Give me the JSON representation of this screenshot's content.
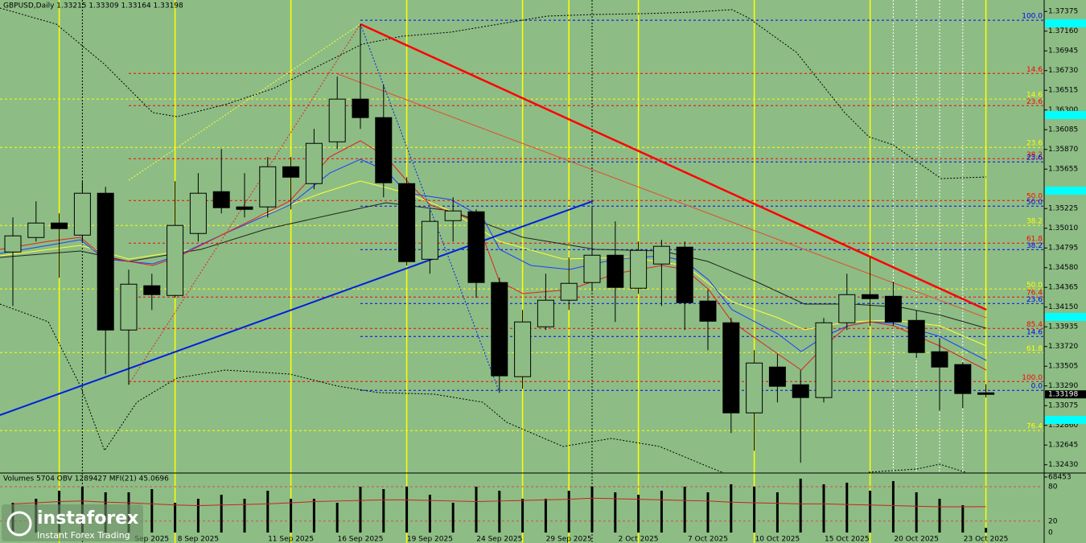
{
  "chart_data": [
    {
      "type": "candlestick",
      "title": "GBPUSD,Daily  1.33215 1.33309 1.33164 1.33198",
      "categories": [
        null,
        null,
        null,
        null,
        null,
        null,
        "Sep 2025",
        null,
        "8 Sep 2025",
        null,
        null,
        null,
        "11 Sep 2025",
        null,
        null,
        "16 Sep 2025",
        null,
        null,
        "19 Sep 2025",
        null,
        null,
        "24 Sep 2025",
        null,
        null,
        "29 Sep 2025",
        null,
        null,
        "2 Oct 2025",
        null,
        null,
        "7 Oct 2025",
        null,
        null,
        "10 Oct 2025",
        null,
        null,
        "15 Oct 2025",
        null,
        null,
        "20 Oct 2025",
        null,
        null,
        "23 Oct 2025"
      ],
      "open": [
        1.34751,
        1.34909,
        1.35067,
        1.34935,
        1.35392,
        1.339,
        1.34383,
        1.34277,
        1.34953,
        1.35409,
        1.35243,
        1.35243,
        1.35681,
        1.35497,
        1.35953,
        1.36419,
        1.36217,
        1.35497,
        1.34672,
        1.35093,
        1.3519,
        1.34418,
        1.33391,
        1.33935,
        1.34225,
        1.34418,
        1.34716,
        1.34356,
        1.3462,
        1.34804,
        1.34216,
        1.33979,
        1.32996,
        1.33496,
        1.33303,
        1.33163,
        1.33979,
        1.34286,
        1.34268,
        1.34005,
        1.33663,
        1.33523,
        1.33215
      ],
      "high": [
        1.35128,
        1.35304,
        1.35172,
        1.35523,
        1.35462,
        1.34558,
        1.34514,
        1.35523,
        1.35611,
        1.35874,
        1.35611,
        1.35787,
        1.35787,
        1.36094,
        1.36664,
        1.37235,
        1.36577,
        1.35567,
        1.35216,
        1.35348,
        1.35216,
        1.3447,
        1.34119,
        1.34514,
        1.3469,
        1.35234,
        1.35085,
        1.34865,
        1.34883,
        1.34865,
        1.34339,
        1.34032,
        1.3368,
        1.33637,
        1.33461,
        1.34032,
        1.34514,
        1.3469,
        1.34426,
        1.34119,
        1.33812,
        1.33549,
        1.33309
      ],
      "low": [
        1.34163,
        1.34865,
        1.3447,
        1.34865,
        1.33417,
        1.33303,
        1.34119,
        1.34251,
        1.34865,
        1.35172,
        1.35128,
        1.35128,
        1.35216,
        1.35436,
        1.35874,
        1.36094,
        1.35348,
        1.34602,
        1.34514,
        1.34865,
        1.34251,
        1.33215,
        1.33259,
        1.339,
        1.34119,
        1.34321,
        1.33988,
        1.34294,
        1.34163,
        1.339,
        1.3368,
        1.32777,
        1.32583,
        1.3311,
        1.32452,
        1.3311,
        1.339,
        1.33944,
        1.33944,
        1.33593,
        1.33022,
        1.33049,
        1.33164
      ],
      "close": [
        1.34927,
        1.35067,
        1.35006,
        1.35392,
        1.339,
        1.344,
        1.34286,
        1.35041,
        1.35392,
        1.35234,
        1.35216,
        1.35681,
        1.35567,
        1.35936,
        1.36419,
        1.36217,
        1.35506,
        1.34646,
        1.35085,
        1.35199,
        1.34418,
        1.334,
        1.33988,
        1.34225,
        1.34409,
        1.34716,
        1.34365,
        1.34769,
        1.34813,
        1.34198,
        1.33996,
        1.32996,
        1.3354,
        1.33286,
        1.33163,
        1.33979,
        1.34286,
        1.34242,
        1.33988,
        1.33654,
        1.33496,
        1.33207,
        1.33198
      ],
      "up_color": "#8dbd85",
      "down_color": "#000000",
      "ylim": [
        1.3234,
        1.375
      ],
      "yticks": [
        1.37375,
        {
          "value": 1.3716,
          "label": "1.37160"
        },
        1.36945,
        {
          "value": 1.3673,
          "label": "1.36730"
        },
        1.36515,
        {
          "value": 1.363,
          "label": "1.36300"
        },
        1.36085,
        {
          "value": 1.3587,
          "label": "1.35870"
        },
        1.35655,
        1.35225,
        {
          "value": 1.3501,
          "label": "1.35010"
        },
        1.34795,
        {
          "value": 1.3458,
          "label": "1.34580"
        },
        1.34365,
        {
          "value": 1.3415,
          "label": "1.34150"
        },
        1.33935,
        {
          "value": 1.3372,
          "label": "1.33720"
        },
        1.33505,
        {
          "value": 1.3329,
          "label": "1.33290"
        },
        1.33075,
        {
          "value": 1.3286,
          "label": "1.32860"
        },
        1.32645,
        {
          "value": 1.3243,
          "label": "1.32430"
        }
      ],
      "fib_levels": [
        {
          "label": "100.0",
          "price": 1.37279,
          "color": "#0000ff"
        },
        {
          "label": "14.6",
          "price": 1.36699,
          "color": "#ff0000"
        },
        {
          "label": "14.6",
          "price": 1.36419,
          "color": "#ffff00"
        },
        {
          "label": "23.6",
          "price": 1.36348,
          "color": "#ff0000"
        },
        {
          "label": "23.6",
          "price": 1.35892,
          "color": "#ffff00"
        },
        {
          "label": "38.2",
          "price": 1.35769,
          "color": "#ff0000"
        },
        {
          "label": "23.6",
          "price": 1.35734,
          "color": "#0000ff"
        },
        {
          "label": "50.0",
          "price": 1.35313,
          "color": "#ff0000"
        },
        {
          "label": "50.0",
          "price": 1.35251,
          "color": "#0000ff"
        },
        {
          "label": "38.2",
          "price": 1.35041,
          "color": "#ffff00"
        },
        {
          "label": "61.8",
          "price": 1.34848,
          "color": "#ff0000"
        },
        {
          "label": "38.2",
          "price": 1.34777,
          "color": "#0000ff"
        },
        {
          "label": "50.0",
          "price": 1.34347,
          "color": "#ffff00"
        },
        {
          "label": "76.4",
          "price": 1.3426,
          "color": "#ff0000"
        },
        {
          "label": "23.6",
          "price": 1.34189,
          "color": "#0000ff"
        },
        {
          "label": "85.4",
          "price": 1.33917,
          "color": "#ff0000"
        },
        {
          "label": "14.6",
          "price": 1.3383,
          "color": "#0000ff"
        },
        {
          "label": "61.8",
          "price": 1.33654,
          "color": "#ffff00"
        },
        {
          "label": "100.0",
          "price": 1.33338,
          "color": "#ff0000"
        },
        {
          "label": "0.0",
          "price": 1.33242,
          "color": "#0000ff"
        },
        {
          "label": "76.4",
          "price": 1.32803,
          "color": "#ffff00"
        }
      ]
    },
    {
      "type": "bar",
      "title": "Volumes 5704  OBV 1289427  MFI(21) 45.0696",
      "values": [
        36704,
        41664,
        51584,
        56544,
        49600,
        49600,
        53568,
        36704,
        41664,
        46624,
        41664,
        51584,
        41664,
        41664,
        36704,
        56544,
        53568,
        56544,
        46624,
        36704,
        56544,
        51584,
        41664,
        41664,
        51584,
        56544,
        49600,
        46624,
        51584,
        56544,
        49600,
        59520,
        56544,
        49600,
        66464,
        59520,
        61504,
        51584,
        63488,
        49600,
        41664,
        33728,
        5704
      ],
      "color": "#000000",
      "ylim": [
        0,
        68453
      ],
      "yticks": [
        68453
      ],
      "mfi": {
        "color": "#cc2020",
        "axis": "y2",
        "values": [
          50,
          52,
          54,
          55,
          53,
          52,
          50,
          48,
          47,
          48,
          49,
          50,
          52,
          54,
          55,
          56,
          57,
          57,
          56,
          55,
          54,
          55,
          56,
          57,
          58,
          60,
          59,
          58,
          57,
          56,
          55,
          53,
          52,
          51,
          50,
          50,
          49,
          48,
          47,
          46,
          45,
          45,
          45.0696
        ]
      },
      "y2lim": [
        0,
        100
      ],
      "y2ticks": [
        0,
        20,
        80
      ]
    }
  ],
  "logo": {
    "name": "instaforex",
    "tagline": "Instant Forex Trading"
  }
}
